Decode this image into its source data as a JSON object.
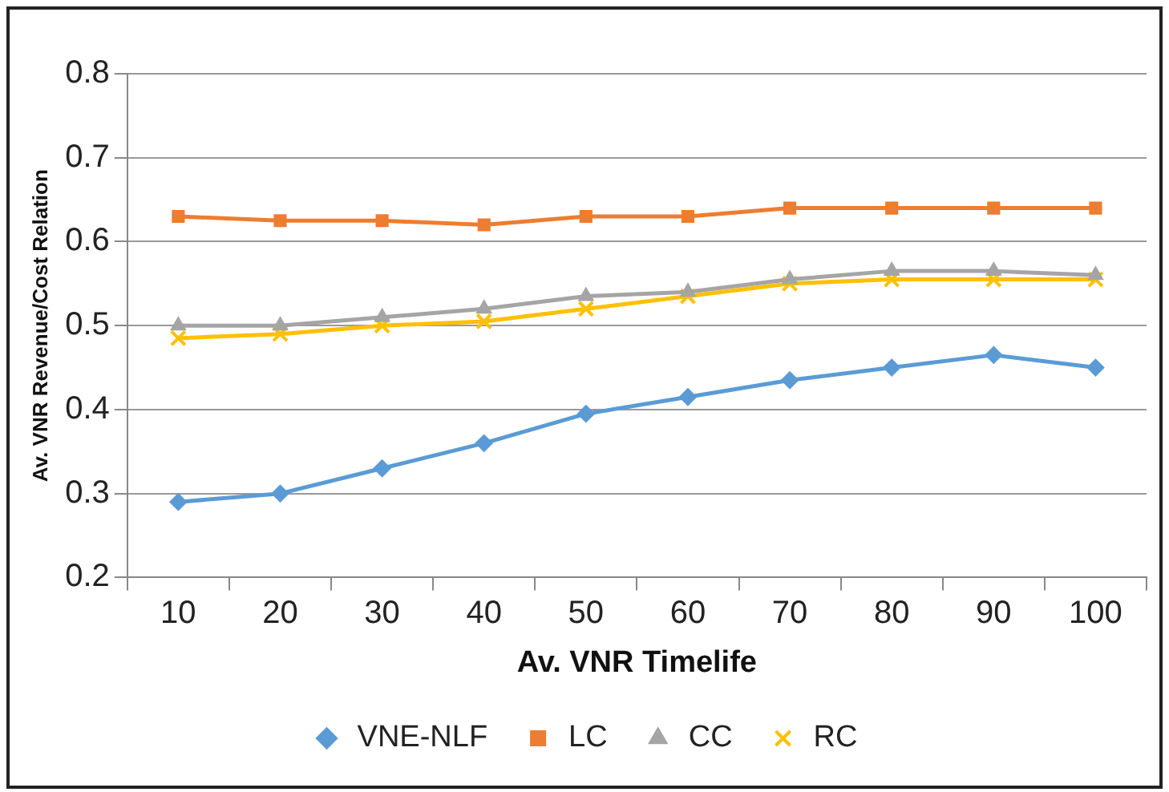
{
  "chart_data": {
    "type": "line",
    "xlabel": "Av. VNR Timelife",
    "ylabel": "Av. VNR Revenue/Cost Relation",
    "categories": [
      "10",
      "20",
      "30",
      "40",
      "50",
      "60",
      "70",
      "80",
      "90",
      "100"
    ],
    "ylim": [
      0.2,
      0.8
    ],
    "yticks": [
      0.2,
      0.3,
      0.4,
      0.5,
      0.6,
      0.7,
      0.8
    ],
    "grid": "y",
    "legend": "bottom",
    "series": [
      {
        "name": "VNE-NLF",
        "color": "#5b9bd5",
        "marker": "diamond",
        "values": [
          0.29,
          0.3,
          0.33,
          0.36,
          0.395,
          0.415,
          0.435,
          0.45,
          0.465,
          0.45
        ]
      },
      {
        "name": "LC",
        "color": "#ed7d31",
        "marker": "square",
        "values": [
          0.63,
          0.625,
          0.625,
          0.62,
          0.63,
          0.63,
          0.64,
          0.64,
          0.64,
          0.64
        ]
      },
      {
        "name": "CC",
        "color": "#a5a5a5",
        "marker": "triangle",
        "values": [
          0.5,
          0.5,
          0.51,
          0.52,
          0.535,
          0.54,
          0.555,
          0.565,
          0.565,
          0.56
        ]
      },
      {
        "name": "RC",
        "color": "#ffc000",
        "marker": "cross",
        "values": [
          0.485,
          0.49,
          0.5,
          0.505,
          0.52,
          0.535,
          0.55,
          0.555,
          0.555,
          0.555
        ]
      }
    ]
  }
}
